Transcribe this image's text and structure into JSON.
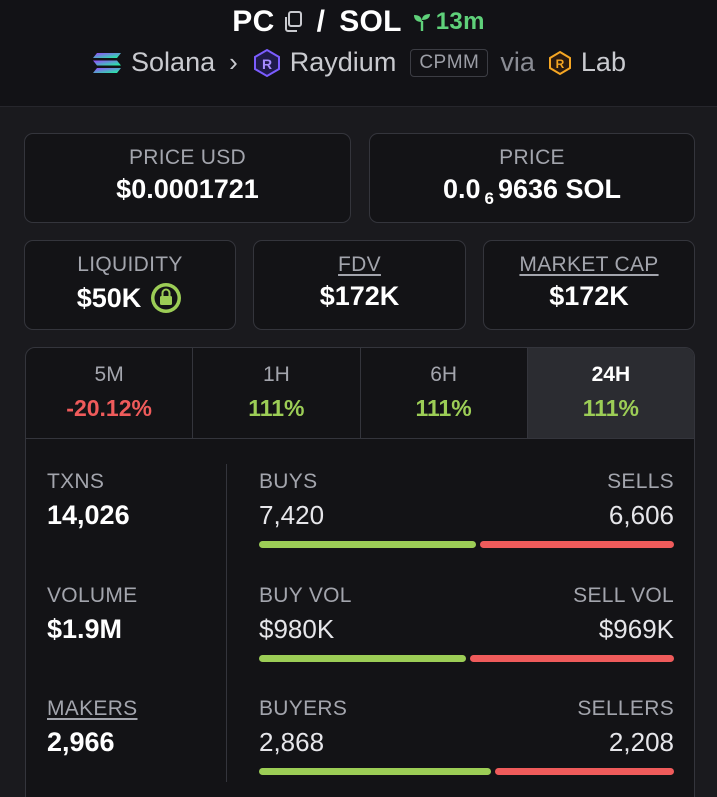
{
  "header": {
    "base_token": "PC",
    "quote_token": "SOL",
    "age": "13m",
    "chain": "Solana",
    "dex": "Raydium",
    "pool_type": "CPMM",
    "via_label": "via",
    "launchpad": "Lab",
    "icons": {
      "copy": "copy-icon",
      "age": "sprout-icon",
      "chain": "solana-icon",
      "dex": "raydium-icon",
      "launchpad": "lab-icon"
    }
  },
  "price_usd": {
    "label": "PRICE USD",
    "value": "$0.0001721"
  },
  "price_native": {
    "label": "PRICE",
    "prefix": "0.0",
    "zeros": "6",
    "digits": "9636",
    "unit": "SOL"
  },
  "liquidity": {
    "label": "LIQUIDITY",
    "value": "$50K",
    "locked_icon": "lock-icon"
  },
  "fdv": {
    "label": "FDV",
    "value": "$172K"
  },
  "market_cap": {
    "label": "MARKET CAP",
    "value": "$172K"
  },
  "tabs": [
    {
      "label": "5M",
      "change": "-20.12%",
      "direction": "down",
      "active": false
    },
    {
      "label": "1H",
      "change": "111%",
      "direction": "up",
      "active": false
    },
    {
      "label": "6H",
      "change": "111%",
      "direction": "up",
      "active": false
    },
    {
      "label": "24H",
      "change": "111%",
      "direction": "up",
      "active": true
    }
  ],
  "stats": {
    "txns": {
      "label": "TXNS",
      "value": "14,026"
    },
    "volume": {
      "label": "VOLUME",
      "value": "$1.9M"
    },
    "makers": {
      "label": "MAKERS",
      "value": "2,966"
    },
    "buys": {
      "label": "BUYS",
      "value": "7,420",
      "share": 0.529
    },
    "sells": {
      "label": "SELLS",
      "value": "6,606"
    },
    "buy_vol": {
      "label": "BUY VOL",
      "value": "$980K",
      "share": 0.503
    },
    "sell_vol": {
      "label": "SELL VOL",
      "value": "$969K"
    },
    "buyers": {
      "label": "BUYERS",
      "value": "2,868",
      "share": 0.565
    },
    "sellers": {
      "label": "SELLERS",
      "value": "2,208"
    }
  },
  "colors": {
    "positive": "#9ccd56",
    "negative": "#ef5b5b",
    "age": "#5fd17a"
  }
}
